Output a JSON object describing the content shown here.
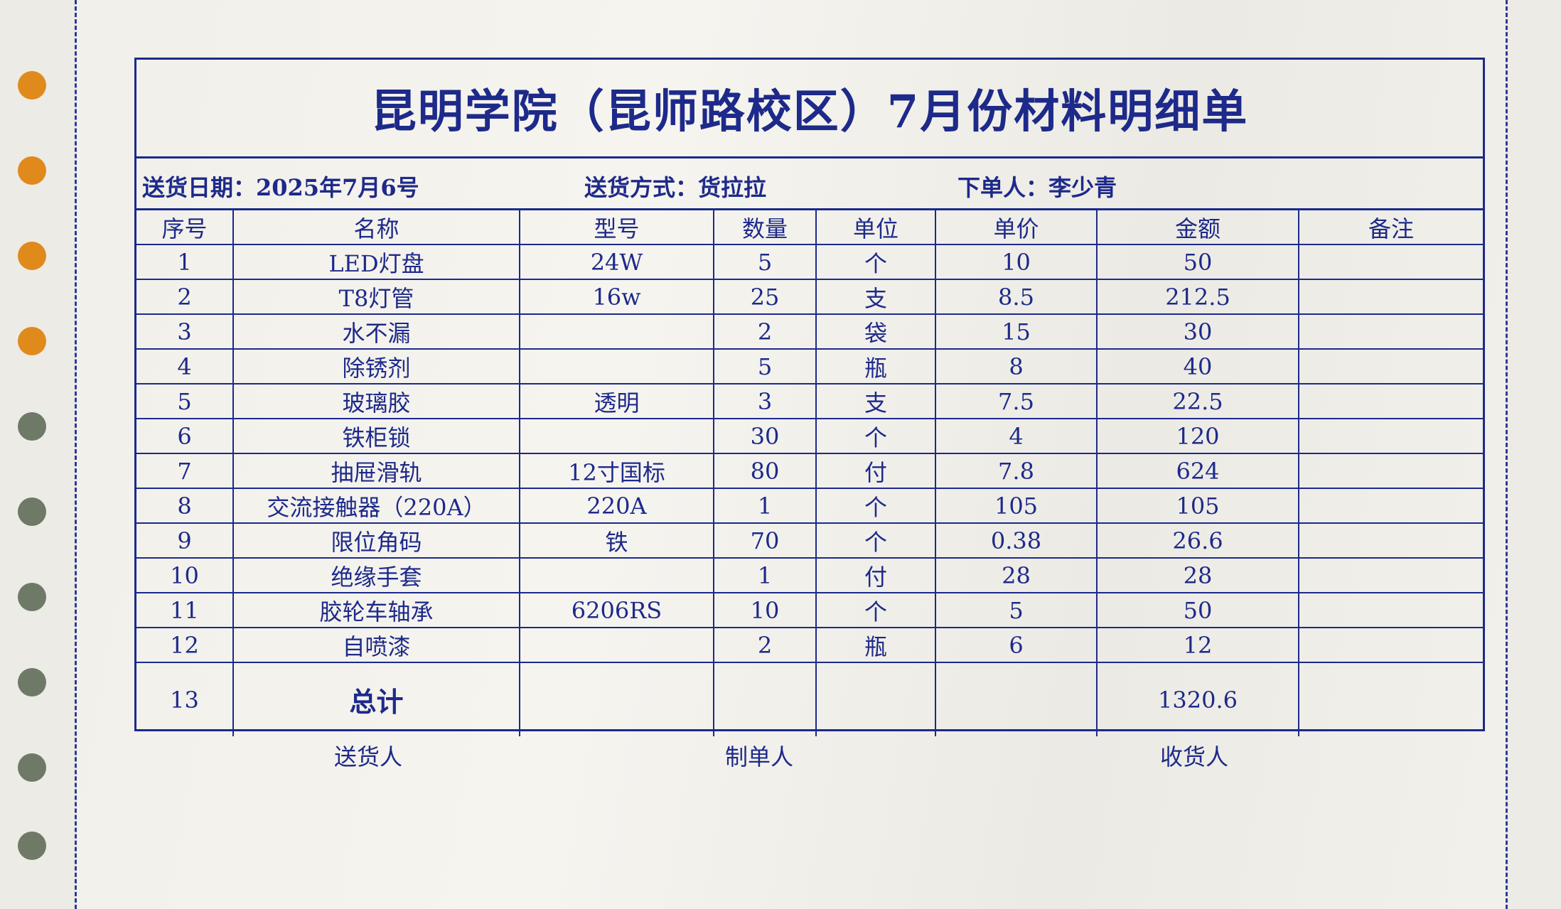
{
  "title": "昆明学院（昆师路校区）7月份材料明细单",
  "info": {
    "delivery_date": "送货日期：2025年7月6号",
    "delivery_method": "送货方式：货拉拉",
    "orderer": "下单人：李少青"
  },
  "columns": [
    "序号",
    "名称",
    "型号",
    "数量",
    "单位",
    "单价",
    "金额",
    "备注"
  ],
  "rows": [
    [
      "1",
      "LED灯盘",
      "24W",
      "5",
      "个",
      "10",
      "50",
      ""
    ],
    [
      "2",
      "T8灯管",
      "16w",
      "25",
      "支",
      "8.5",
      "212.5",
      ""
    ],
    [
      "3",
      "水不漏",
      "",
      "2",
      "袋",
      "15",
      "30",
      ""
    ],
    [
      "4",
      "除锈剂",
      "",
      "5",
      "瓶",
      "8",
      "40",
      ""
    ],
    [
      "5",
      "玻璃胶",
      "透明",
      "3",
      "支",
      "7.5",
      "22.5",
      ""
    ],
    [
      "6",
      "铁柜锁",
      "",
      "30",
      "个",
      "4",
      "120",
      ""
    ],
    [
      "7",
      "抽屉滑轨",
      "12寸国标",
      "80",
      "付",
      "7.8",
      "624",
      ""
    ],
    [
      "8",
      "交流接触器（220A）",
      "220A",
      "1",
      "个",
      "105",
      "105",
      ""
    ],
    [
      "9",
      "限位角码",
      "铁",
      "70",
      "个",
      "0.38",
      "26.6",
      ""
    ],
    [
      "10",
      "绝缘手套",
      "",
      "1",
      "付",
      "28",
      "28",
      ""
    ],
    [
      "11",
      "胶轮车轴承",
      "6206RS",
      "10",
      "个",
      "5",
      "50",
      ""
    ],
    [
      "12",
      "自喷漆",
      "",
      "2",
      "瓶",
      "6",
      "12",
      ""
    ]
  ],
  "total": {
    "index": "13",
    "label": "总计",
    "amount": "1320.6"
  },
  "signatures": {
    "deliverer": "送货人",
    "preparer": "制单人",
    "receiver": "收货人"
  },
  "colors": {
    "ink": "#1d2a8a",
    "paper": "#f3f1ec"
  }
}
